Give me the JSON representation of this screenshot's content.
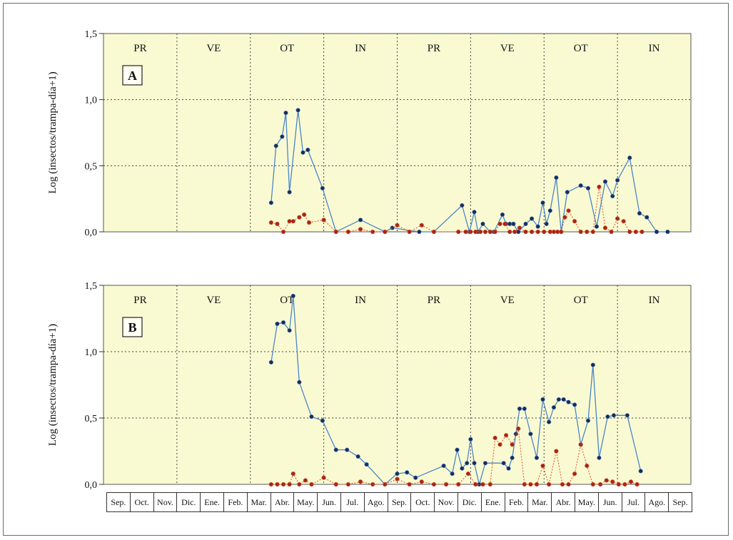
{
  "chart_data": [
    {
      "type": "line",
      "panel_label": "A",
      "ylabel": "Log (insectos/trampa-día+1)",
      "ylim": [
        0,
        1.5
      ],
      "yticks": [
        "0,0",
        "0,5",
        "1,0",
        "1,5"
      ],
      "seasons": [
        "PR",
        "VE",
        "OT",
        "IN",
        "PR",
        "VE",
        "OT",
        "IN"
      ],
      "x_unit": "months since Sep (0-24)",
      "series": [
        {
          "color": "#4a86c8",
          "marker": "#1c2a56",
          "style": "solid",
          "x": [
            6.85,
            7.05,
            7.3,
            7.45,
            7.6,
            7.95,
            8.15,
            8.35,
            8.95,
            9.5,
            10.5,
            11.5,
            11.8,
            12.9,
            13.5,
            14.65,
            14.95,
            15.15,
            15.3,
            15.5,
            15.8,
            15.95,
            16.3,
            16.45,
            16.6,
            16.75,
            16.95,
            17.25,
            17.5,
            17.75,
            17.95,
            18.1,
            18.25,
            18.5,
            18.7,
            18.95,
            19.5,
            19.8,
            20.15,
            20.5,
            20.8,
            21.0,
            21.5,
            21.9,
            22.2,
            22.6,
            23.05
          ],
          "y": [
            0.22,
            0.65,
            0.72,
            0.9,
            0.3,
            0.92,
            0.6,
            0.62,
            0.33,
            0.0,
            0.09,
            0.0,
            0.03,
            0.0,
            0.0,
            0.2,
            0.0,
            0.15,
            0.0,
            0.06,
            0.0,
            0.0,
            0.13,
            0.06,
            0.06,
            0.06,
            0.0,
            0.06,
            0.1,
            0.04,
            0.22,
            0.06,
            0.16,
            0.41,
            0.0,
            0.3,
            0.35,
            0.33,
            0.04,
            0.38,
            0.27,
            0.39,
            0.56,
            0.14,
            0.11,
            0.0,
            0.0
          ]
        },
        {
          "color": "#e45a3a",
          "marker": "#a02818",
          "style": "dotted",
          "x": [
            6.85,
            7.1,
            7.35,
            7.6,
            7.75,
            8.0,
            8.2,
            8.4,
            9.0,
            9.5,
            10.0,
            10.5,
            11.0,
            11.5,
            12.0,
            12.5,
            13.0,
            13.5,
            14.5,
            14.8,
            15.0,
            15.2,
            15.4,
            15.6,
            15.8,
            16.0,
            16.2,
            16.4,
            16.6,
            16.8,
            17.0,
            17.25,
            17.5,
            17.75,
            18.0,
            18.25,
            18.4,
            18.55,
            18.7,
            18.85,
            19.0,
            19.25,
            19.5,
            19.75,
            20.0,
            20.25,
            20.5,
            20.75,
            21.0,
            21.25,
            21.5,
            21.75,
            22.0
          ],
          "y": [
            0.07,
            0.06,
            0.0,
            0.08,
            0.08,
            0.11,
            0.13,
            0.07,
            0.09,
            0.0,
            0.0,
            0.02,
            0.0,
            0.0,
            0.05,
            0.0,
            0.05,
            0.0,
            0.0,
            0.0,
            0.0,
            0.0,
            0.0,
            0.0,
            0.0,
            0.0,
            0.06,
            0.06,
            0.0,
            0.0,
            0.03,
            0.0,
            0.0,
            0.0,
            0.0,
            0.0,
            0.0,
            0.0,
            0.0,
            0.11,
            0.16,
            0.08,
            0.0,
            0.0,
            0.0,
            0.34,
            0.03,
            0.0,
            0.1,
            0.08,
            0.0,
            0.0,
            0.0
          ]
        }
      ]
    },
    {
      "type": "line",
      "panel_label": "B",
      "ylabel": "Log (insectos/trampa-día+1)",
      "ylim": [
        0,
        1.5
      ],
      "yticks": [
        "0,0",
        "0,5",
        "1,0",
        "1,5"
      ],
      "seasons": [
        "PR",
        "VE",
        "OT",
        "IN",
        "PR",
        "VE",
        "OT",
        "IN"
      ],
      "x_unit": "months since Sep (0-24)",
      "series": [
        {
          "color": "#4a86c8",
          "marker": "#1c2a56",
          "style": "solid",
          "x": [
            6.85,
            7.1,
            7.35,
            7.6,
            7.75,
            8.0,
            8.5,
            8.95,
            9.5,
            9.95,
            10.4,
            10.75,
            11.5,
            12.0,
            12.4,
            12.75,
            13.9,
            14.25,
            14.45,
            14.65,
            14.85,
            15.0,
            15.15,
            15.35,
            15.6,
            16.35,
            16.55,
            16.7,
            16.85,
            17.0,
            17.2,
            17.45,
            17.7,
            17.95,
            18.2,
            18.4,
            18.6,
            18.8,
            19.0,
            19.25,
            19.5,
            19.8,
            20.0,
            20.25,
            20.6,
            20.85,
            21.4,
            21.95
          ],
          "y": [
            0.92,
            1.21,
            1.22,
            1.16,
            1.42,
            0.77,
            0.51,
            0.48,
            0.26,
            0.26,
            0.21,
            0.15,
            0.0,
            0.08,
            0.09,
            0.05,
            0.14,
            0.08,
            0.26,
            0.12,
            0.16,
            0.34,
            0.16,
            0.0,
            0.16,
            0.16,
            0.12,
            0.2,
            0.38,
            0.57,
            0.57,
            0.38,
            0.2,
            0.64,
            0.47,
            0.58,
            0.64,
            0.64,
            0.62,
            0.6,
            0.3,
            0.48,
            0.9,
            0.2,
            0.51,
            0.52,
            0.52,
            0.1
          ]
        },
        {
          "color": "#e45a3a",
          "marker": "#a02818",
          "style": "dotted",
          "x": [
            6.85,
            7.1,
            7.35,
            7.6,
            7.75,
            8.0,
            8.25,
            8.5,
            9.0,
            9.5,
            10.0,
            10.5,
            11.0,
            11.5,
            12.0,
            12.5,
            13.0,
            13.5,
            14.0,
            14.5,
            14.9,
            15.2,
            15.5,
            15.8,
            16.0,
            16.2,
            16.45,
            16.7,
            16.95,
            17.2,
            17.45,
            17.7,
            17.95,
            18.2,
            18.5,
            18.75,
            19.0,
            19.25,
            19.5,
            19.75,
            20.0,
            20.3,
            20.55,
            20.8,
            21.05,
            21.3,
            21.55,
            21.8
          ],
          "y": [
            0.0,
            0.0,
            0.0,
            0.0,
            0.08,
            0.0,
            0.03,
            0.0,
            0.05,
            0.0,
            0.0,
            0.02,
            0.0,
            0.0,
            0.04,
            0.0,
            0.02,
            0.0,
            0.0,
            0.0,
            0.08,
            0.0,
            0.0,
            0.0,
            0.35,
            0.3,
            0.37,
            0.3,
            0.42,
            0.0,
            0.0,
            0.0,
            0.14,
            0.0,
            0.25,
            0.0,
            0.0,
            0.08,
            0.3,
            0.14,
            0.0,
            0.0,
            0.03,
            0.02,
            0.0,
            0.0,
            0.02,
            0.0
          ]
        }
      ]
    }
  ],
  "months": [
    "Sep.",
    "Oct.",
    "Nov.",
    "Dic.",
    "Ene.",
    "Feb.",
    "Mar.",
    "Abr.",
    "May.",
    "Jun.",
    "Jul.",
    "Ago.",
    "Sep.",
    "Oct.",
    "Nov.",
    "Dic.",
    "Ene.",
    "Feb.",
    "Mar.",
    "Abr.",
    "May.",
    "Jun.",
    "Jul.",
    "Ago.",
    "Sep."
  ]
}
